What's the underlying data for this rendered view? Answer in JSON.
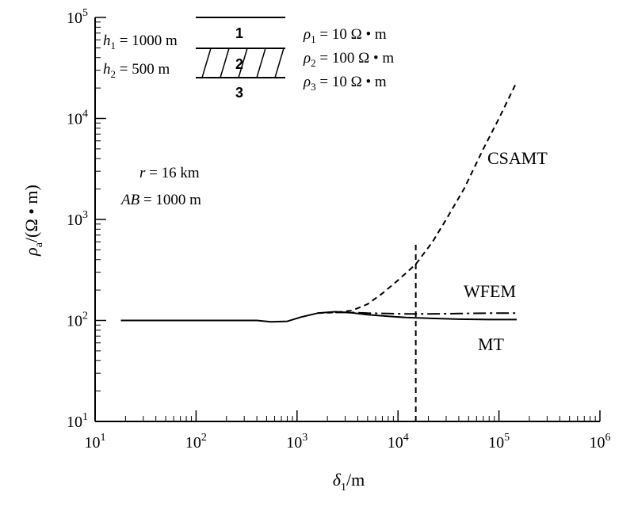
{
  "chart_data": {
    "type": "line",
    "xscale": "log",
    "yscale": "log",
    "xlim": [
      10,
      1000000
    ],
    "ylim": [
      10,
      100000
    ],
    "grid": false,
    "x_ticks": [
      10,
      100,
      1000,
      10000,
      100000,
      1000000
    ],
    "y_ticks": [
      10,
      100,
      1000,
      10000,
      100000
    ],
    "x_tick_labels": [
      {
        "base": "10",
        "exp": "1"
      },
      {
        "base": "10",
        "exp": "2"
      },
      {
        "base": "10",
        "exp": "3"
      },
      {
        "base": "10",
        "exp": "4"
      },
      {
        "base": "10",
        "exp": "5"
      },
      {
        "base": "10",
        "exp": "6"
      }
    ],
    "y_tick_labels": [
      {
        "base": "10",
        "exp": "1"
      },
      {
        "base": "10",
        "exp": "2"
      },
      {
        "base": "10",
        "exp": "3"
      },
      {
        "base": "10",
        "exp": "4"
      },
      {
        "base": "10",
        "exp": "5"
      }
    ],
    "xlabel": {
      "main": "δ",
      "sub": "1",
      "rest": "/m"
    },
    "ylabel": {
      "main": "ρ",
      "sub": "a",
      "rest": "/(Ω • m)"
    },
    "series": [
      {
        "name": "MT",
        "style": "solid",
        "x": [
          18,
          100,
          400,
          550,
          800,
          1100,
          1600,
          2400,
          3500,
          5000,
          8000,
          12000,
          20000,
          40000,
          80000,
          150000
        ],
        "y": [
          100,
          100,
          100,
          97,
          98,
          108,
          118,
          122,
          119,
          114,
          110,
          107,
          105,
          103,
          102,
          102
        ]
      },
      {
        "name": "WFEM",
        "style": "dashdot",
        "x": [
          2400,
          3500,
          5000,
          8000,
          12000,
          20000,
          40000,
          80000,
          150000
        ],
        "y": [
          120,
          120,
          118,
          117,
          116,
          116,
          117,
          118,
          118
        ]
      },
      {
        "name": "CSAMT",
        "style": "dashed",
        "x": [
          1600,
          2400,
          3500,
          5000,
          7000,
          10000,
          15000,
          22000,
          30000,
          45000,
          70000,
          100000,
          150000
        ],
        "y": [
          118,
          120,
          125,
          145,
          185,
          250,
          360,
          600,
          1000,
          2000,
          5000,
          10000,
          23000
        ]
      }
    ],
    "vertical_marker": {
      "x": 15000,
      "y_from": 10,
      "y_to": 600,
      "style": "dashed"
    },
    "annotations": {
      "params": {
        "r": "r",
        "r_value": " = 16 km",
        "ab": "AB",
        "ab_value": " = 1000 m"
      },
      "layer_model": {
        "layers": [
          "1",
          "2",
          "3"
        ],
        "h1": {
          "main": "h",
          "sub": "1",
          "rest": " = 1000 m"
        },
        "h2": {
          "main": "h",
          "sub": "2",
          "rest": " = 500 m"
        },
        "rho1": {
          "main": "ρ",
          "sub": "1",
          "rest": " = 10 Ω • m"
        },
        "rho2": {
          "main": "ρ",
          "sub": "2",
          "rest": " = 100 Ω • m"
        },
        "rho3": {
          "main": "ρ",
          "sub": "3",
          "rest": " = 10 Ω • m"
        }
      }
    }
  }
}
